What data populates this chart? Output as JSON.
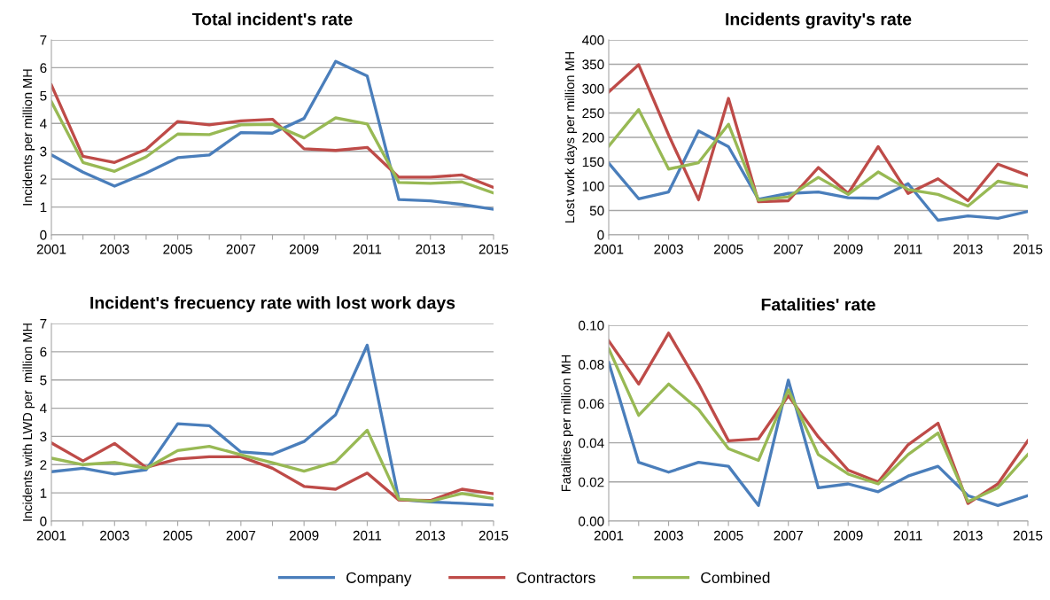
{
  "chart_data": [
    {
      "type": "line",
      "title": "Total incident's rate",
      "ylabel": "Incidents per million MH",
      "x": [
        2001,
        2002,
        2003,
        2004,
        2005,
        2006,
        2007,
        2008,
        2009,
        2010,
        2011,
        2012,
        2013,
        2014,
        2015
      ],
      "xlim": [
        2001,
        2015
      ],
      "xticks": [
        2001,
        {
          "value": 2002,
          "label": null
        },
        2003,
        {
          "value": 2004,
          "label": null
        },
        2005,
        {
          "value": 2006,
          "label": null
        },
        2007,
        {
          "value": 2008,
          "label": null
        },
        2009,
        {
          "value": 2010,
          "label": null
        },
        2011,
        {
          "value": 2012,
          "label": null
        },
        2013,
        {
          "value": 2014,
          "label": null
        },
        2015
      ],
      "ylim": [
        0,
        7
      ],
      "yticks": [
        0,
        1,
        2,
        3,
        4,
        5,
        6,
        7
      ],
      "grid": "y",
      "series": [
        {
          "color": "#4a7ebb",
          "values": [
            2.87,
            2.25,
            1.75,
            2.22,
            2.77,
            2.87,
            3.67,
            3.65,
            4.18,
            6.23,
            5.7,
            1.27,
            1.22,
            1.09,
            0.92
          ]
        },
        {
          "color": "#be4b48",
          "values": [
            5.38,
            2.82,
            2.6,
            3.07,
            4.07,
            3.95,
            4.09,
            4.15,
            3.09,
            3.03,
            3.14,
            2.07,
            2.07,
            2.15,
            1.7
          ]
        },
        {
          "color": "#98b954",
          "values": [
            4.78,
            2.6,
            2.28,
            2.8,
            3.62,
            3.6,
            3.95,
            3.97,
            3.48,
            4.2,
            3.98,
            1.88,
            1.85,
            1.9,
            1.5
          ]
        }
      ]
    },
    {
      "type": "line",
      "title": "Incidents gravity's rate",
      "ylabel": "Lost work days per million MH",
      "x": [
        2001,
        2002,
        2003,
        2004,
        2005,
        2006,
        2007,
        2008,
        2009,
        2010,
        2011,
        2012,
        2013,
        2014,
        2015
      ],
      "xlim": [
        2001,
        2015
      ],
      "xticks": [
        2001,
        {
          "value": 2002,
          "label": null
        },
        2003,
        {
          "value": 2004,
          "label": null
        },
        2005,
        {
          "value": 2006,
          "label": null
        },
        2007,
        {
          "value": 2008,
          "label": null
        },
        2009,
        {
          "value": 2010,
          "label": null
        },
        2011,
        {
          "value": 2012,
          "label": null
        },
        2013,
        {
          "value": 2014,
          "label": null
        },
        2015
      ],
      "ylim": [
        0,
        400
      ],
      "yticks": [
        0,
        50,
        100,
        150,
        200,
        250,
        300,
        350,
        400
      ],
      "grid": "y",
      "series": [
        {
          "color": "#4a7ebb",
          "values": [
            147,
            74,
            88,
            213,
            181,
            73,
            85,
            88,
            76,
            75,
            105,
            30,
            39,
            34,
            48
          ]
        },
        {
          "color": "#be4b48",
          "values": [
            293,
            349,
            205,
            72,
            280,
            68,
            70,
            138,
            85,
            181,
            85,
            115,
            70,
            145,
            122
          ]
        },
        {
          "color": "#98b954",
          "values": [
            182,
            257,
            135,
            148,
            227,
            71,
            78,
            118,
            83,
            129,
            93,
            83,
            59,
            110,
            98
          ]
        }
      ]
    },
    {
      "type": "line",
      "title": "Incident's frecuency rate with lost work days",
      "ylabel": "Incidents with LWD per  million MH",
      "x": [
        2001,
        2002,
        2003,
        2004,
        2005,
        2006,
        2007,
        2008,
        2009,
        2010,
        2011,
        2012,
        2013,
        2014,
        2015
      ],
      "xlim": [
        2001,
        2015
      ],
      "xticks": [
        2001,
        {
          "value": 2002,
          "label": null
        },
        2003,
        {
          "value": 2004,
          "label": null
        },
        2005,
        {
          "value": 2006,
          "label": null
        },
        2007,
        {
          "value": 2008,
          "label": null
        },
        2009,
        {
          "value": 2010,
          "label": null
        },
        2011,
        {
          "value": 2012,
          "label": null
        },
        2013,
        {
          "value": 2014,
          "label": null
        },
        2015
      ],
      "ylim": [
        0,
        7
      ],
      "yticks": [
        0,
        1,
        2,
        3,
        4,
        5,
        6,
        7
      ],
      "grid": "y",
      "series": [
        {
          "color": "#4a7ebb",
          "values": [
            1.75,
            1.87,
            1.67,
            1.82,
            3.45,
            3.38,
            2.45,
            2.37,
            2.82,
            3.77,
            6.23,
            0.77,
            0.68,
            0.63,
            0.57
          ]
        },
        {
          "color": "#be4b48",
          "values": [
            2.77,
            2.13,
            2.75,
            1.9,
            2.2,
            2.28,
            2.28,
            1.87,
            1.23,
            1.13,
            1.7,
            0.75,
            0.73,
            1.13,
            0.97
          ]
        },
        {
          "color": "#98b954",
          "values": [
            2.23,
            2.0,
            2.08,
            1.87,
            2.5,
            2.65,
            2.35,
            2.07,
            1.77,
            2.1,
            3.22,
            0.78,
            0.7,
            0.98,
            0.8
          ]
        }
      ]
    },
    {
      "type": "line",
      "title": "Fatalities' rate",
      "ylabel": "Fatalities per million MH",
      "x": [
        2001,
        2002,
        2003,
        2004,
        2005,
        2006,
        2007,
        2008,
        2009,
        2010,
        2011,
        2012,
        2013,
        2014,
        2015
      ],
      "xlim": [
        2001,
        2015
      ],
      "xticks": [
        2001,
        {
          "value": 2002,
          "label": null
        },
        2003,
        {
          "value": 2004,
          "label": null
        },
        2005,
        {
          "value": 2006,
          "label": null
        },
        2007,
        {
          "value": 2008,
          "label": null
        },
        2009,
        {
          "value": 2010,
          "label": null
        },
        2011,
        {
          "value": 2012,
          "label": null
        },
        2013,
        {
          "value": 2014,
          "label": null
        },
        2015
      ],
      "ylim": [
        0,
        0.1
      ],
      "yticks": [
        {
          "value": 0,
          "label": "0.00"
        },
        {
          "value": 0.02,
          "label": "0.02"
        },
        {
          "value": 0.04,
          "label": "0.04"
        },
        {
          "value": 0.06,
          "label": "0.06"
        },
        {
          "value": 0.08,
          "label": "0.08"
        },
        {
          "value": 0.1,
          "label": "0.10"
        }
      ],
      "grid": "y",
      "legend": "bottom",
      "series": [
        {
          "name": "Company",
          "color": "#4a7ebb",
          "values": [
            0.081,
            0.03,
            0.025,
            0.03,
            0.028,
            0.008,
            0.072,
            0.017,
            0.019,
            0.015,
            0.023,
            0.028,
            0.013,
            0.008,
            0.013
          ]
        },
        {
          "name": "Contractors",
          "color": "#be4b48",
          "values": [
            0.092,
            0.07,
            0.096,
            0.07,
            0.041,
            0.042,
            0.064,
            0.043,
            0.026,
            0.02,
            0.039,
            0.05,
            0.009,
            0.019,
            0.041
          ]
        },
        {
          "name": "Combined",
          "color": "#98b954",
          "values": [
            0.088,
            0.054,
            0.07,
            0.057,
            0.037,
            0.031,
            0.067,
            0.034,
            0.024,
            0.019,
            0.034,
            0.045,
            0.01,
            0.017,
            0.034
          ]
        }
      ]
    }
  ]
}
